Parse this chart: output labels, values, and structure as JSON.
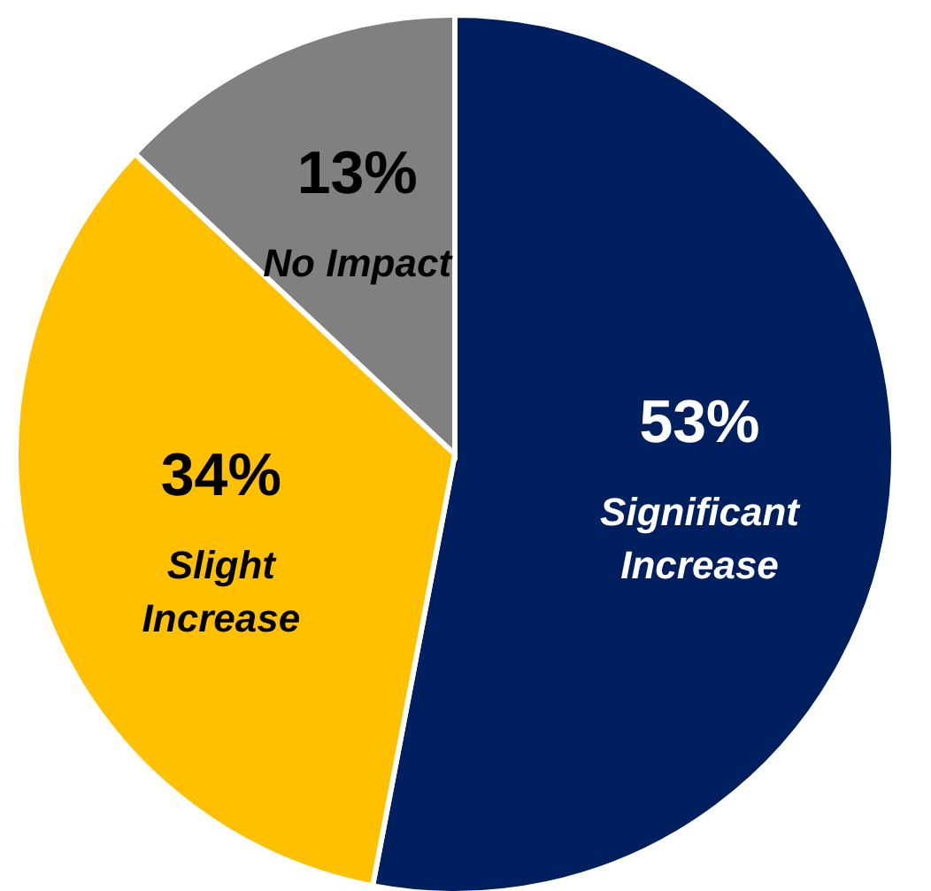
{
  "chart_data": {
    "type": "pie",
    "categories": [
      "Significant Increase",
      "Slight Increase",
      "No Impact"
    ],
    "values": [
      53,
      34,
      13
    ],
    "colors": [
      "#001f5f",
      "#ffc000",
      "#808080"
    ],
    "value_labels": [
      "53%",
      "34%",
      "13%"
    ]
  }
}
